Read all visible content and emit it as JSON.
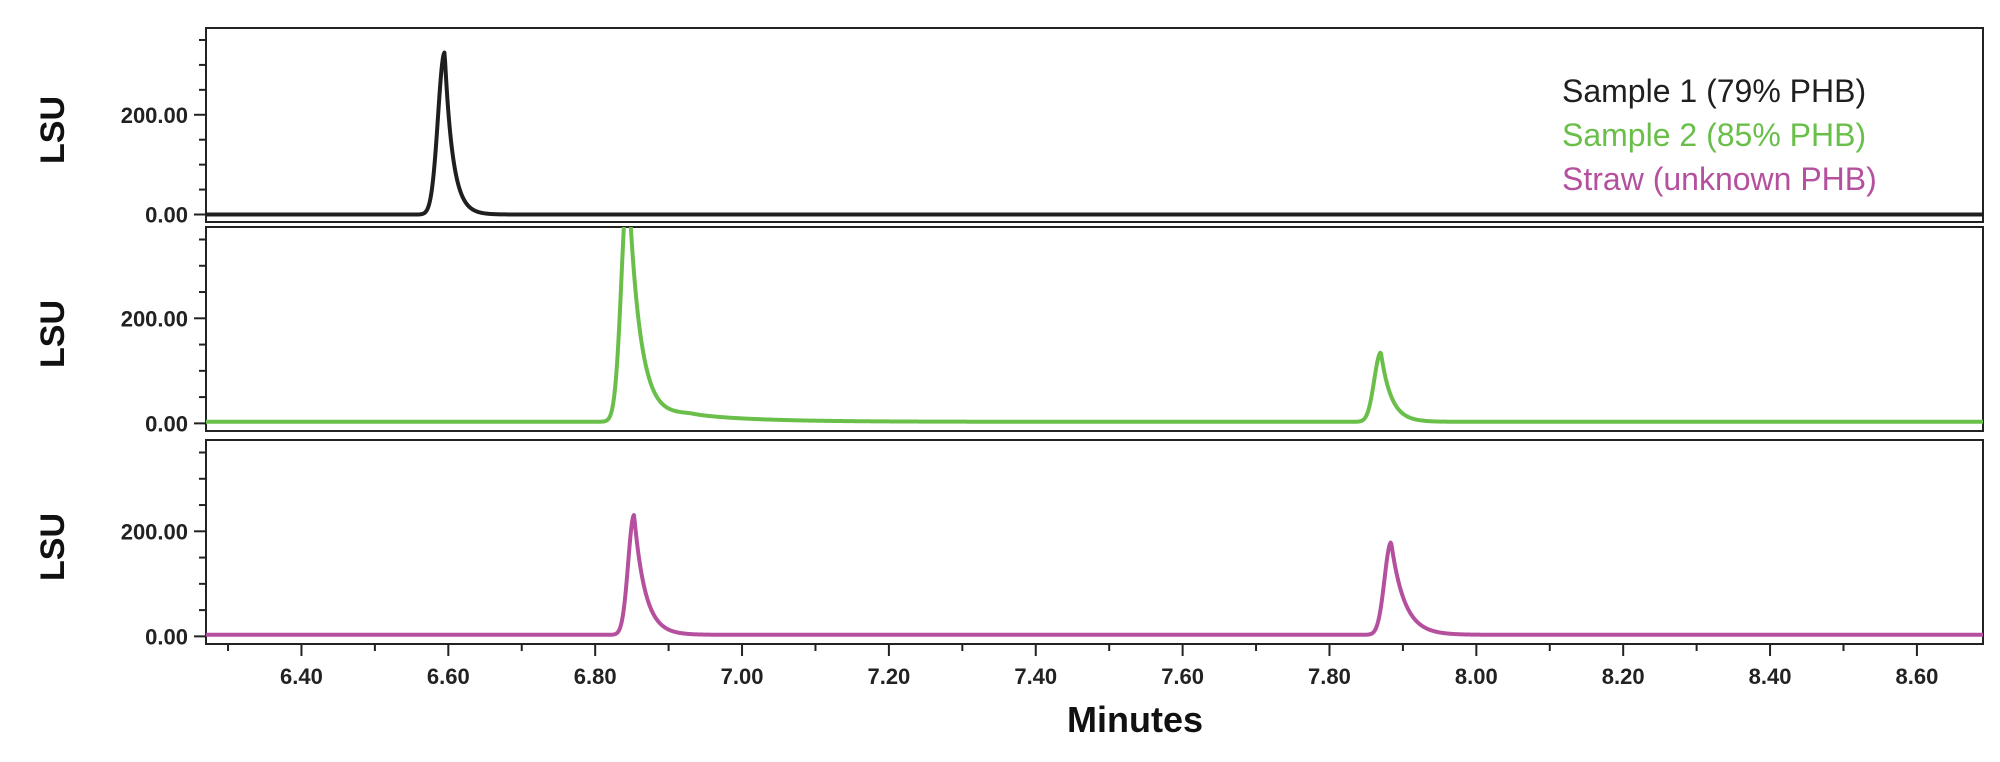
{
  "chart_data": {
    "type": "line",
    "xlabel": "Minutes",
    "xlim": [
      6.27,
      8.69
    ],
    "x_ticks": [
      "6.40",
      "6.60",
      "6.80",
      "7.00",
      "7.20",
      "7.40",
      "7.60",
      "7.80",
      "8.00",
      "8.20",
      "8.40",
      "8.60"
    ],
    "x_tick_values": [
      6.4,
      6.6,
      6.8,
      7.0,
      7.2,
      7.4,
      7.6,
      7.8,
      8.0,
      8.2,
      8.4,
      8.6
    ],
    "legend": {
      "placement": "top-right"
    },
    "panels": [
      {
        "ylabel": "LSU",
        "ylim": [
          -5,
          370
        ],
        "y_ticks": [
          "0.00",
          "200.00"
        ],
        "y_tick_values": [
          0,
          200
        ],
        "series": [
          {
            "name": "Sample 1 (79% PHB)",
            "color": "#1f1f1f",
            "baseline": 0,
            "peaks": [
              {
                "x": 6.595,
                "height": 325,
                "sigma_left": 0.009,
                "tau_right": 0.011
              }
            ]
          }
        ]
      },
      {
        "ylabel": "LSU",
        "ylim": [
          -5,
          370
        ],
        "y_ticks": [
          "0.00",
          "200.00"
        ],
        "y_tick_values": [
          0,
          200
        ],
        "series": [
          {
            "name": "Sample 2 (85% PHB)",
            "color": "#6abf4b",
            "baseline": 3,
            "peaks": [
              {
                "x": 6.845,
                "height": 460,
                "sigma_left": 0.009,
                "tau_right": 0.016
              },
              {
                "x": 6.93,
                "height": 14,
                "sigma_left": 0.04,
                "tau_right": 0.09
              },
              {
                "x": 7.87,
                "height": 132,
                "sigma_left": 0.009,
                "tau_right": 0.014
              }
            ]
          }
        ]
      },
      {
        "ylabel": "LSU",
        "ylim": [
          -5,
          370
        ],
        "y_ticks": [
          "0.00",
          "200.00"
        ],
        "y_tick_values": [
          0,
          200
        ],
        "series": [
          {
            "name": "Straw (unknown PHB)",
            "color": "#b5509e",
            "baseline": 3,
            "peaks": [
              {
                "x": 6.853,
                "height": 228,
                "sigma_left": 0.008,
                "tau_right": 0.015
              },
              {
                "x": 7.884,
                "height": 176,
                "sigma_left": 0.009,
                "tau_right": 0.018
              }
            ]
          }
        ]
      }
    ]
  }
}
